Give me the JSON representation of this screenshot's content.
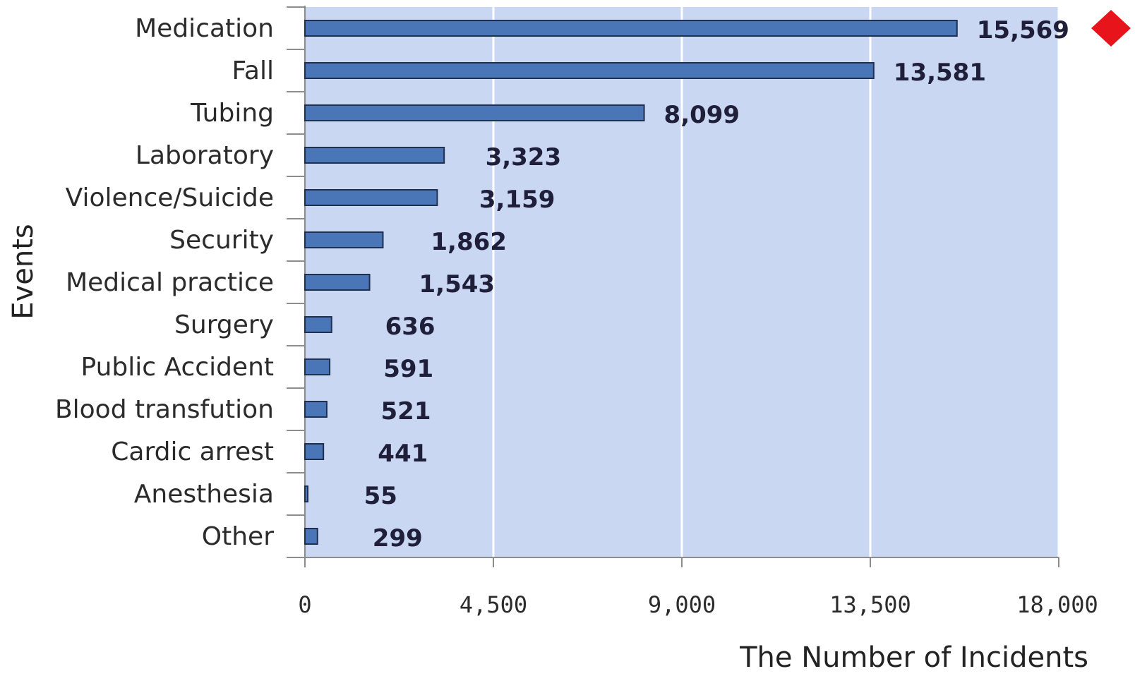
{
  "chart_data": {
    "type": "bar",
    "orientation": "horizontal",
    "categories": [
      "Medication",
      "Fall",
      "Tubing",
      "Laboratory",
      "Violence/Suicide",
      "Security",
      "Medical practice",
      "Surgery",
      "Public Accident",
      "Blood transfution",
      "Cardic arrest",
      "Anesthesia",
      "Other"
    ],
    "values": [
      15569,
      13581,
      8099,
      3323,
      3159,
      1862,
      1543,
      636,
      591,
      521,
      441,
      55,
      299
    ],
    "value_labels": [
      "15,569",
      "13,581",
      "8,099",
      "3,323",
      "3,159",
      "1,862",
      "1,543",
      "636",
      "591",
      "521",
      "441",
      "55",
      "299"
    ],
    "xlabel": "The Number of Incidents",
    "ylabel": "Events",
    "xlim": [
      0,
      18000
    ],
    "x_ticks": [
      0,
      4500,
      9000,
      13500,
      18000
    ],
    "x_tick_labels": [
      "0",
      "4,500",
      "9,000",
      "13,500",
      "18,000"
    ],
    "grid": "vertical",
    "legend": "none"
  },
  "colors": {
    "plot_background": "#c9d7f3",
    "gridline": "#ffffff",
    "bar_fill": "#4a76b8",
    "bar_stroke": "#1e2f4f",
    "axis": "#8c8c8c",
    "marker": "#e8141b"
  }
}
